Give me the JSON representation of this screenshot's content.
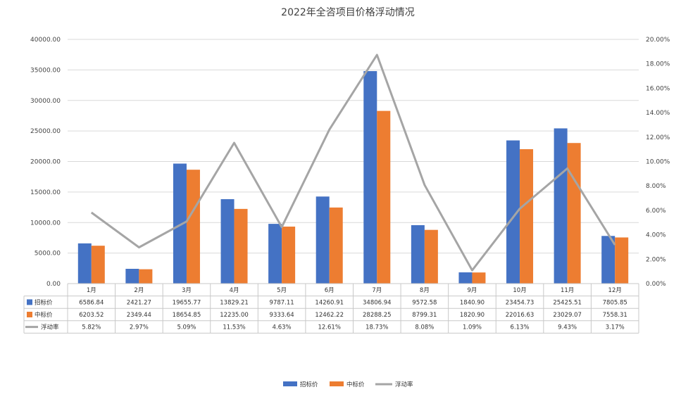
{
  "chart_data": {
    "type": "bar",
    "title": "2022年全咨项目价格浮动情况",
    "categories": [
      "1月",
      "2月",
      "3月",
      "4月",
      "5月",
      "6月",
      "7月",
      "8月",
      "9月",
      "10月",
      "11月",
      "12月"
    ],
    "series": [
      {
        "name": "招标价",
        "type": "bar",
        "axis": "left",
        "color": "#4472C4",
        "values": [
          6586.84,
          2421.27,
          19655.77,
          13829.21,
          9787.11,
          14260.91,
          34806.94,
          9572.58,
          1840.9,
          23454.73,
          25425.51,
          7805.85
        ],
        "labels": [
          "6586.84",
          "2421.27",
          "19655.77",
          "13829.21",
          "9787.11",
          "14260.91",
          "34806.94",
          "9572.58",
          "1840.90",
          "23454.73",
          "25425.51",
          "7805.85"
        ]
      },
      {
        "name": "中标价",
        "type": "bar",
        "axis": "left",
        "color": "#ED7D31",
        "values": [
          6203.52,
          2349.44,
          18654.85,
          12235.0,
          9333.64,
          12462.22,
          28288.25,
          8799.31,
          1820.9,
          22016.63,
          23029.07,
          7558.31
        ],
        "labels": [
          "6203.52",
          "2349.44",
          "18654.85",
          "12235.00",
          "9333.64",
          "12462.22",
          "28288.25",
          "8799.31",
          "1820.90",
          "22016.63",
          "23029.07",
          "7558.31"
        ]
      },
      {
        "name": "浮动率",
        "type": "line",
        "axis": "right",
        "color": "#A5A5A5",
        "values": [
          5.82,
          2.97,
          5.09,
          11.53,
          4.63,
          12.61,
          18.73,
          8.08,
          1.09,
          6.13,
          9.43,
          3.17
        ],
        "labels": [
          "5.82%",
          "2.97%",
          "5.09%",
          "11.53%",
          "4.63%",
          "12.61%",
          "18.73%",
          "8.08%",
          "1.09%",
          "6.13%",
          "9.43%",
          "3.17%"
        ]
      }
    ],
    "y_left": {
      "min": 0,
      "max": 40000,
      "step": 5000,
      "ticks": [
        "0.00",
        "5000.00",
        "10000.00",
        "15000.00",
        "20000.00",
        "25000.00",
        "30000.00",
        "35000.00",
        "40000.00"
      ]
    },
    "y_right": {
      "min": 0,
      "max": 20,
      "step": 2,
      "ticks": [
        "0.00%",
        "2.00%",
        "4.00%",
        "6.00%",
        "8.00%",
        "10.00%",
        "12.00%",
        "14.00%",
        "16.00%",
        "18.00%",
        "20.00%"
      ]
    },
    "grid": true,
    "data_table": true,
    "legend_position": "bottom"
  }
}
